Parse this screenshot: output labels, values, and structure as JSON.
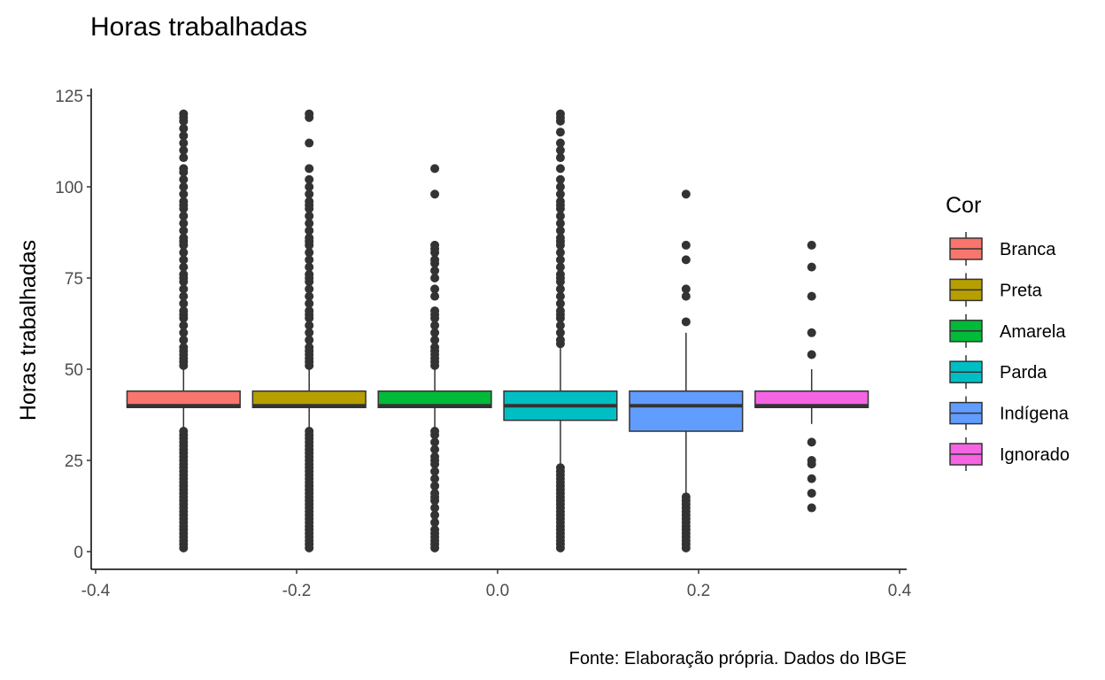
{
  "chart_data": {
    "type": "boxplot",
    "title": "Horas trabalhadas",
    "ylabel": "Horas trabalhadas",
    "xlabel": "",
    "caption": "Fonte: Elaboração própria. Dados do IBGE",
    "xlim": [
      -0.4,
      0.4
    ],
    "ylim": [
      0,
      125
    ],
    "x_ticks": [
      "-0.4",
      "-0.2",
      "0.0",
      "0.2",
      "0.4"
    ],
    "y_ticks": [
      "0",
      "25",
      "50",
      "75",
      "100",
      "125"
    ],
    "legend_title": "Cor",
    "legend_position": "right",
    "grid": false,
    "series": [
      {
        "name": "Branca",
        "color": "#F8766D",
        "x_center": -0.3125,
        "whisker_low": 34,
        "q1": 39.5,
        "median": 40,
        "q3": 44,
        "whisker_high": 50,
        "outliers": [
          1,
          2,
          3,
          4,
          5,
          6,
          7,
          8,
          9,
          10,
          11,
          12,
          13,
          14,
          15,
          16,
          17,
          18,
          19,
          20,
          21,
          22,
          23,
          24,
          25,
          26,
          27,
          28,
          29,
          30,
          31,
          32,
          33,
          51,
          52,
          53,
          54,
          55,
          56,
          58,
          60,
          62,
          64,
          65,
          66,
          68,
          70,
          72,
          74,
          75,
          76,
          78,
          80,
          82,
          84,
          85,
          86,
          88,
          90,
          92,
          94,
          95,
          96,
          98,
          100,
          102,
          104,
          105,
          108,
          110,
          112,
          114,
          116,
          118,
          119,
          120
        ]
      },
      {
        "name": "Preta",
        "color": "#B79F00",
        "x_center": -0.1875,
        "whisker_low": 34,
        "q1": 39.5,
        "median": 40,
        "q3": 44,
        "whisker_high": 50,
        "outliers": [
          1,
          2,
          3,
          4,
          5,
          6,
          7,
          8,
          9,
          10,
          11,
          12,
          13,
          14,
          15,
          16,
          17,
          18,
          19,
          20,
          21,
          22,
          23,
          24,
          25,
          26,
          27,
          28,
          29,
          30,
          31,
          32,
          33,
          51,
          52,
          53,
          54,
          55,
          56,
          58,
          60,
          62,
          64,
          65,
          66,
          68,
          70,
          72,
          74,
          75,
          76,
          78,
          80,
          82,
          84,
          85,
          86,
          88,
          90,
          92,
          94,
          95,
          96,
          98,
          100,
          102,
          105,
          112,
          119,
          120
        ]
      },
      {
        "name": "Amarela",
        "color": "#00BA38",
        "x_center": -0.0625,
        "whisker_low": 34,
        "q1": 39.5,
        "median": 40,
        "q3": 44,
        "whisker_high": 50,
        "outliers": [
          1,
          2,
          3,
          4,
          5,
          6,
          8,
          10,
          12,
          14,
          15,
          16,
          18,
          20,
          22,
          24,
          25,
          26,
          28,
          30,
          32,
          33,
          51,
          52,
          53,
          54,
          55,
          56,
          58,
          60,
          62,
          64,
          65,
          66,
          70,
          72,
          75,
          77,
          79,
          80,
          82,
          83,
          84,
          98,
          105
        ]
      },
      {
        "name": "Parda",
        "color": "#00BFC4",
        "x_center": 0.0625,
        "whisker_low": 24,
        "q1": 36,
        "median": 40,
        "q3": 44,
        "whisker_high": 56,
        "outliers": [
          1,
          2,
          3,
          4,
          5,
          6,
          7,
          8,
          9,
          10,
          11,
          12,
          13,
          14,
          15,
          16,
          17,
          18,
          19,
          20,
          21,
          22,
          23,
          57,
          58,
          60,
          62,
          64,
          65,
          66,
          68,
          70,
          72,
          74,
          75,
          76,
          78,
          80,
          82,
          84,
          85,
          86,
          88,
          90,
          92,
          94,
          95,
          96,
          98,
          100,
          102,
          105,
          108,
          110,
          112,
          115,
          118,
          119,
          120
        ]
      },
      {
        "name": "Indígena",
        "color": "#619CFF",
        "x_center": 0.1875,
        "whisker_low": 16,
        "q1": 33,
        "median": 40,
        "q3": 44,
        "whisker_high": 60,
        "outliers": [
          1,
          2,
          3,
          4,
          5,
          6,
          7,
          8,
          9,
          10,
          11,
          12,
          13,
          14,
          15,
          63,
          70,
          72,
          80,
          84,
          98
        ]
      },
      {
        "name": "Ignorado",
        "color": "#F564E3",
        "x_center": 0.3125,
        "whisker_low": 35,
        "q1": 39.5,
        "median": 40,
        "q3": 44,
        "whisker_high": 50,
        "outliers": [
          12,
          16,
          20,
          24,
          25,
          30,
          54,
          60,
          70,
          78,
          84
        ]
      }
    ]
  }
}
